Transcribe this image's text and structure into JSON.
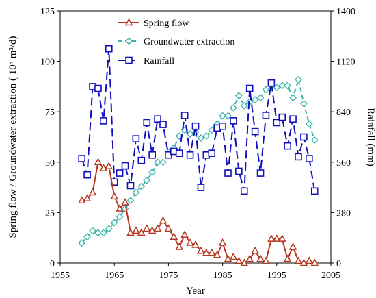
{
  "chart_data": {
    "type": "line",
    "xlabel": "Year",
    "ylabel_left": "Spring flow / Groundwater extraction ( 10⁴ m³/d)",
    "ylabel_right": "Rainfall (mm)",
    "xlim": [
      1955,
      2005
    ],
    "ylim_left": [
      0,
      125
    ],
    "ylim_right": [
      0,
      1400
    ],
    "x_ticks": [
      1955,
      1965,
      1975,
      1985,
      1995,
      2005
    ],
    "y_ticks_left": [
      0,
      25,
      50,
      75,
      100,
      125
    ],
    "y_ticks_right": [
      0,
      280,
      560,
      840,
      1120,
      1400
    ],
    "legend_position": "top-center",
    "grid": false,
    "series": [
      {
        "name": "Spring flow",
        "axis": "left",
        "color": "#B5371E",
        "line_style": "solid",
        "marker": "triangle",
        "x": [
          1959,
          1960,
          1961,
          1962,
          1963,
          1964,
          1965,
          1966,
          1967,
          1968,
          1969,
          1970,
          1971,
          1972,
          1973,
          1974,
          1975,
          1976,
          1977,
          1978,
          1979,
          1980,
          1981,
          1982,
          1983,
          1984,
          1985,
          1986,
          1987,
          1988,
          1989,
          1990,
          1991,
          1992,
          1993,
          1994,
          1995,
          1996,
          1997,
          1998,
          1999,
          2000,
          2001,
          2002
        ],
        "y": [
          31,
          32,
          35,
          50,
          47,
          48,
          33,
          27,
          30,
          15,
          16,
          15,
          17,
          16,
          17,
          21,
          17,
          13,
          8,
          14,
          10,
          9,
          6,
          5,
          5,
          4,
          10,
          2,
          3,
          1,
          0,
          2,
          6,
          2,
          1,
          12,
          12,
          12,
          2,
          8,
          1,
          0,
          1,
          0
        ]
      },
      {
        "name": "Groundwater extraction",
        "axis": "left",
        "color": "#3BB5A8",
        "line_style": "dashed",
        "marker": "diamond",
        "x": [
          1959,
          1960,
          1961,
          1962,
          1963,
          1964,
          1965,
          1966,
          1967,
          1968,
          1969,
          1970,
          1971,
          1972,
          1973,
          1974,
          1975,
          1976,
          1977,
          1978,
          1979,
          1980,
          1981,
          1982,
          1983,
          1984,
          1985,
          1986,
          1987,
          1988,
          1989,
          1990,
          1991,
          1992,
          1993,
          1994,
          1995,
          1996,
          1997,
          1998,
          1999,
          2000,
          2001,
          2002
        ],
        "y": [
          10,
          13,
          16,
          15,
          15,
          17,
          20,
          23,
          27,
          31,
          35,
          38,
          41,
          45,
          50,
          50,
          55,
          57,
          63,
          66,
          64,
          65,
          62,
          63,
          66,
          69,
          73,
          73,
          77,
          83,
          78,
          80,
          81,
          82,
          86,
          88,
          87,
          88,
          88,
          82,
          91,
          79,
          69,
          61
        ]
      },
      {
        "name": "Rainfall",
        "axis": "right",
        "color": "#1010BF",
        "line_style": "dashed",
        "marker": "square",
        "x": [
          1959,
          1960,
          1961,
          1962,
          1963,
          1964,
          1965,
          1966,
          1967,
          1968,
          1969,
          1970,
          1971,
          1972,
          1973,
          1974,
          1975,
          1976,
          1977,
          1978,
          1979,
          1980,
          1981,
          1982,
          1983,
          1984,
          1985,
          1986,
          1987,
          1988,
          1989,
          1990,
          1991,
          1992,
          1993,
          1994,
          1995,
          1996,
          1997,
          1998,
          1999,
          2000,
          2001,
          2002
        ],
        "y": [
          580,
          490,
          980,
          970,
          790,
          1190,
          450,
          500,
          540,
          430,
          690,
          570,
          780,
          600,
          800,
          770,
          600,
          620,
          610,
          820,
          600,
          760,
          420,
          600,
          610,
          750,
          760,
          500,
          790,
          510,
          400,
          970,
          730,
          500,
          820,
          1000,
          780,
          810,
          650,
          800,
          590,
          700,
          580,
          400
        ]
      }
    ]
  }
}
